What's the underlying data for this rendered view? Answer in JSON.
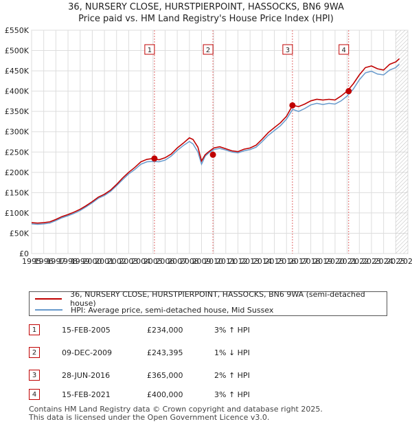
{
  "chart_data": {
    "type": "line",
    "title": "36, NURSERY CLOSE, HURSTPIERPOINT, HASSOCKS, BN6 9WA",
    "subtitle": "Price paid vs. HM Land Registry's House Price Index (HPI)",
    "xlim": [
      1995,
      2026
    ],
    "ylim": [
      0,
      550000
    ],
    "x_ticks": [
      1995,
      1996,
      1997,
      1998,
      1999,
      2000,
      2001,
      2002,
      2003,
      2004,
      2005,
      2006,
      2007,
      2008,
      2009,
      2010,
      2011,
      2012,
      2013,
      2014,
      2015,
      2016,
      2017,
      2018,
      2019,
      2020,
      2021,
      2022,
      2023,
      2024,
      2025,
      2026
    ],
    "x_tick_labels": [
      "1995",
      "1996",
      "1997",
      "1998",
      "1999",
      "2000",
      "2001",
      "2002",
      "2003",
      "2004",
      "2005",
      "2006",
      "2007",
      "2008",
      "2009",
      "2010",
      "2011",
      "2012",
      "2013",
      "2014",
      "2015",
      "2016",
      "2017",
      "2018",
      "2019",
      "2020",
      "2021",
      "2022",
      "2023",
      "2024",
      "2025",
      "2026"
    ],
    "y_ticks": [
      0,
      50000,
      100000,
      150000,
      200000,
      250000,
      300000,
      350000,
      400000,
      450000,
      500000,
      550000
    ],
    "y_tick_labels": [
      "£0",
      "£50K",
      "£100K",
      "£150K",
      "£200K",
      "£250K",
      "£300K",
      "£350K",
      "£400K",
      "£450K",
      "£500K",
      "£550K"
    ],
    "grid": true,
    "hatch_from_year": 2025.0,
    "series": [
      {
        "name": "36, NURSERY CLOSE, HURSTPIERPOINT, HASSOCKS, BN6 9WA (semi-detached house)",
        "color": "#c00000",
        "x": [
          1995,
          1995.5,
          1996,
          1996.5,
          1997,
          1997.5,
          1998,
          1998.5,
          1999,
          1999.5,
          2000,
          2000.5,
          2001,
          2001.5,
          2002,
          2002.5,
          2003,
          2003.5,
          2004,
          2004.5,
          2005,
          2005.5,
          2006,
          2006.5,
          2007,
          2007.5,
          2008,
          2008.3,
          2008.7,
          2009,
          2009.3,
          2009.6,
          2010,
          2010.5,
          2011,
          2011.5,
          2012,
          2012.5,
          2013,
          2013.5,
          2014,
          2014.5,
          2015,
          2015.5,
          2016,
          2016.5,
          2017,
          2017.5,
          2018,
          2018.5,
          2019,
          2019.5,
          2020,
          2020.5,
          2021,
          2021.5,
          2022,
          2022.5,
          2023,
          2023.5,
          2024,
          2024.5,
          2025,
          2025.3
        ],
        "y": [
          76000,
          75000,
          76000,
          78000,
          84000,
          91000,
          96000,
          102000,
          109000,
          118000,
          128000,
          139000,
          146000,
          156000,
          170000,
          186000,
          200000,
          212000,
          226000,
          232000,
          234000,
          231000,
          236000,
          245000,
          260000,
          272000,
          285000,
          281000,
          262000,
          228000,
          243395,
          251000,
          260000,
          263000,
          258000,
          253000,
          251000,
          257000,
          260000,
          267000,
          282000,
          298000,
          310000,
          322000,
          338000,
          365000,
          362000,
          368000,
          376000,
          380000,
          378000,
          380000,
          378000,
          388000,
          400000,
          418000,
          440000,
          458000,
          462000,
          455000,
          452000,
          466000,
          472000,
          480000
        ]
      },
      {
        "name": "HPI: Average price, semi-detached house, Mid Sussex",
        "color": "#6699cc",
        "x": [
          1995,
          1995.5,
          1996,
          1996.5,
          1997,
          1997.5,
          1998,
          1998.5,
          1999,
          1999.5,
          2000,
          2000.5,
          2001,
          2001.5,
          2002,
          2002.5,
          2003,
          2003.5,
          2004,
          2004.5,
          2005,
          2005.5,
          2006,
          2006.5,
          2007,
          2007.5,
          2008,
          2008.3,
          2008.7,
          2009,
          2009.3,
          2009.6,
          2010,
          2010.5,
          2011,
          2011.5,
          2012,
          2012.5,
          2013,
          2013.5,
          2014,
          2014.5,
          2015,
          2015.5,
          2016,
          2016.5,
          2017,
          2017.5,
          2018,
          2018.5,
          2019,
          2019.5,
          2020,
          2020.5,
          2021,
          2021.5,
          2022,
          2022.5,
          2023,
          2023.5,
          2024,
          2024.5,
          2025,
          2025.3
        ],
        "y": [
          73000,
          72000,
          73000,
          75000,
          81000,
          88000,
          93000,
          99000,
          106000,
          115000,
          125000,
          136000,
          143000,
          153000,
          167000,
          182000,
          196000,
          207000,
          220000,
          226000,
          227000,
          226000,
          230000,
          240000,
          254000,
          266000,
          276000,
          270000,
          250000,
          220000,
          240000,
          248000,
          256000,
          259000,
          255000,
          250000,
          248000,
          253000,
          256000,
          262000,
          276000,
          291000,
          303000,
          315000,
          331000,
          355000,
          350000,
          357000,
          366000,
          370000,
          367000,
          370000,
          368000,
          376000,
          388000,
          405000,
          428000,
          445000,
          449000,
          442000,
          440000,
          452000,
          458000,
          466000
        ]
      }
    ],
    "sales": [
      {
        "num": "1",
        "date": "15-FEB-2005",
        "price": "£234,000",
        "hpi": "3% ↑ HPI",
        "x": 2005.12,
        "y": 234000
      },
      {
        "num": "2",
        "date": "09-DEC-2009",
        "price": "£243,395",
        "hpi": "1% ↓ HPI",
        "x": 2009.94,
        "y": 243395
      },
      {
        "num": "3",
        "date": "28-JUN-2016",
        "price": "£365,000",
        "hpi": "2% ↑ HPI",
        "x": 2016.49,
        "y": 365000
      },
      {
        "num": "4",
        "date": "15-FEB-2021",
        "price": "£400,000",
        "hpi": "3% ↑ HPI",
        "x": 2021.12,
        "y": 400000
      }
    ]
  },
  "legend": {
    "property_label": "36, NURSERY CLOSE, HURSTPIERPOINT, HASSOCKS, BN6 9WA (semi-detached house)",
    "hpi_label": "HPI: Average price, semi-detached house, Mid Sussex",
    "property_color": "#c00000",
    "hpi_color": "#6699cc"
  },
  "footer": {
    "line1": "Contains HM Land Registry data © Crown copyright and database right 2025.",
    "line2": "This data is licensed under the Open Government Licence v3.0."
  }
}
